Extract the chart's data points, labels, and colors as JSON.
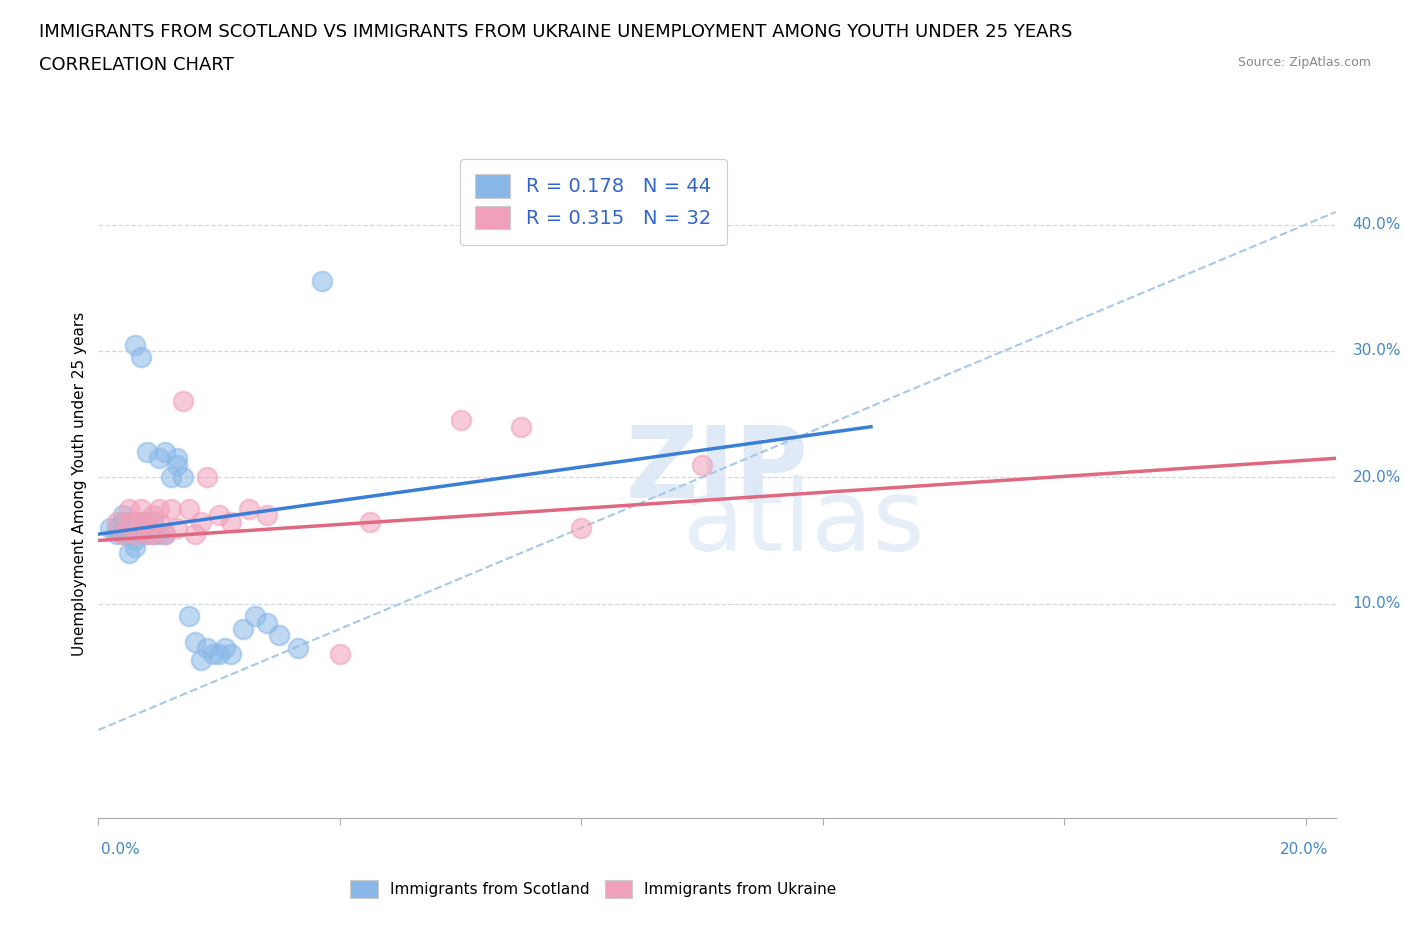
{
  "title_line1": "IMMIGRANTS FROM SCOTLAND VS IMMIGRANTS FROM UKRAINE UNEMPLOYMENT AMONG YOUTH UNDER 25 YEARS",
  "title_line2": "CORRELATION CHART",
  "source": "Source: ZipAtlas.com",
  "ylabel": "Unemployment Among Youth under 25 years",
  "right_yticks": [
    "10.0%",
    "20.0%",
    "30.0%",
    "40.0%"
  ],
  "right_ytick_vals": [
    0.1,
    0.2,
    0.3,
    0.4
  ],
  "legend_scotland": "R = 0.178   N = 44",
  "legend_ukraine": "R = 0.315   N = 32",
  "scotland_color": "#89b8e8",
  "ukraine_color": "#f0a0b8",
  "scotland_line_color": "#3a7fd5",
  "ukraine_line_color": "#e06880",
  "dashed_line_color": "#a8c8e8",
  "scotland_scatter_x": [
    0.002,
    0.003,
    0.003,
    0.004,
    0.004,
    0.004,
    0.005,
    0.005,
    0.005,
    0.005,
    0.006,
    0.006,
    0.006,
    0.006,
    0.007,
    0.007,
    0.007,
    0.008,
    0.008,
    0.008,
    0.009,
    0.009,
    0.01,
    0.01,
    0.011,
    0.011,
    0.012,
    0.013,
    0.013,
    0.014,
    0.015,
    0.016,
    0.017,
    0.018,
    0.019,
    0.02,
    0.021,
    0.022,
    0.024,
    0.026,
    0.028,
    0.03,
    0.033,
    0.037
  ],
  "scotland_scatter_y": [
    0.16,
    0.155,
    0.16,
    0.155,
    0.165,
    0.17,
    0.14,
    0.155,
    0.16,
    0.165,
    0.145,
    0.15,
    0.165,
    0.305,
    0.155,
    0.165,
    0.295,
    0.155,
    0.165,
    0.22,
    0.155,
    0.165,
    0.155,
    0.215,
    0.155,
    0.22,
    0.2,
    0.21,
    0.215,
    0.2,
    0.09,
    0.07,
    0.055,
    0.065,
    0.06,
    0.06,
    0.065,
    0.06,
    0.08,
    0.09,
    0.085,
    0.075,
    0.065,
    0.355
  ],
  "ukraine_scatter_x": [
    0.003,
    0.004,
    0.005,
    0.005,
    0.006,
    0.006,
    0.007,
    0.007,
    0.008,
    0.008,
    0.009,
    0.009,
    0.01,
    0.01,
    0.011,
    0.012,
    0.013,
    0.014,
    0.015,
    0.016,
    0.017,
    0.018,
    0.02,
    0.022,
    0.025,
    0.028,
    0.04,
    0.045,
    0.06,
    0.07,
    0.08,
    0.1
  ],
  "ukraine_scatter_y": [
    0.165,
    0.155,
    0.165,
    0.175,
    0.155,
    0.165,
    0.165,
    0.175,
    0.155,
    0.165,
    0.155,
    0.17,
    0.165,
    0.175,
    0.155,
    0.175,
    0.16,
    0.26,
    0.175,
    0.155,
    0.165,
    0.2,
    0.17,
    0.165,
    0.175,
    0.17,
    0.06,
    0.165,
    0.245,
    0.24,
    0.16,
    0.21
  ],
  "xlim": [
    0.0,
    0.205
  ],
  "ylim": [
    -0.07,
    0.46
  ],
  "scotland_trend_x": [
    0.0,
    0.128
  ],
  "scotland_trend_y": [
    0.155,
    0.24
  ],
  "ukraine_trend_x": [
    0.0,
    0.205
  ],
  "ukraine_trend_y": [
    0.15,
    0.215
  ],
  "diag_line_x": [
    0.0,
    0.205
  ],
  "diag_line_y": [
    0.0,
    0.41
  ],
  "title_fontsize": 13,
  "subtitle_fontsize": 13,
  "axis_label_fontsize": 11,
  "tick_fontsize": 11
}
